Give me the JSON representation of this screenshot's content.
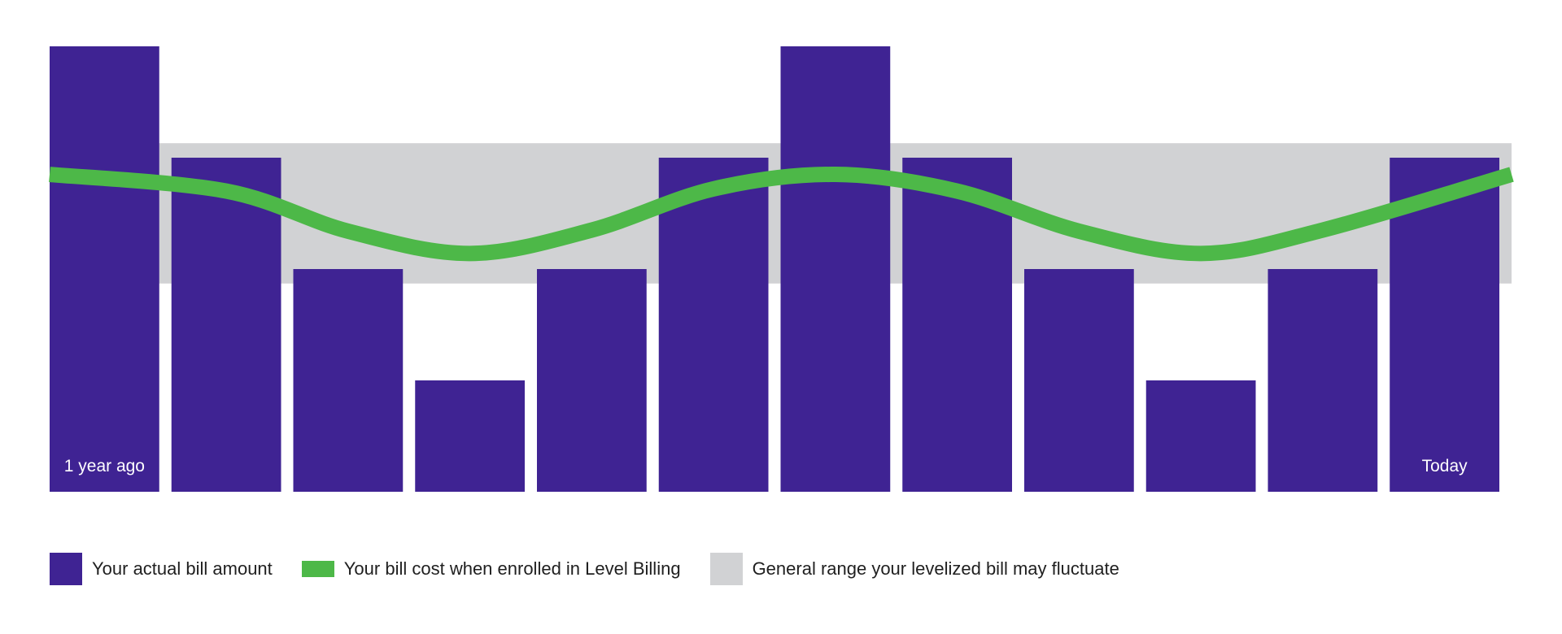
{
  "chart_data": {
    "type": "bar",
    "categories": [
      "1 year ago",
      "",
      "",
      "",
      "",
      "",
      "",
      "",
      "",
      "",
      "",
      "Today"
    ],
    "x_labels_shown": {
      "first": "1 year ago",
      "last": "Today"
    },
    "series": [
      {
        "name": "Your actual bill amount",
        "type": "bar",
        "values": [
          4,
          3,
          2,
          1,
          2,
          3,
          4,
          3,
          2,
          1,
          2,
          3
        ]
      },
      {
        "name": "Your bill cost when enrolled in Level Billing",
        "type": "line",
        "values": [
          2.85,
          2.7,
          2.34,
          2.14,
          2.35,
          2.72,
          2.85,
          2.7,
          2.34,
          2.14,
          2.35,
          2.85
        ]
      }
    ],
    "band": {
      "name": "General range your levelized bill may fluctuate",
      "low": 1.87,
      "high": 3.13
    },
    "ylim": [
      0,
      4
    ],
    "title": "",
    "xlabel": "",
    "ylabel": "",
    "grid": false,
    "legend_placement": "bottom-left"
  },
  "legend": {
    "bar_label": "Your actual bill amount",
    "line_label": "Your bill cost when enrolled in Level Billing",
    "band_label": "General range your levelized bill may fluctuate"
  },
  "colors": {
    "bar": "#3f2393",
    "line": "#4db848",
    "band": "#d1d2d4",
    "bar_text": "#ffffff"
  }
}
